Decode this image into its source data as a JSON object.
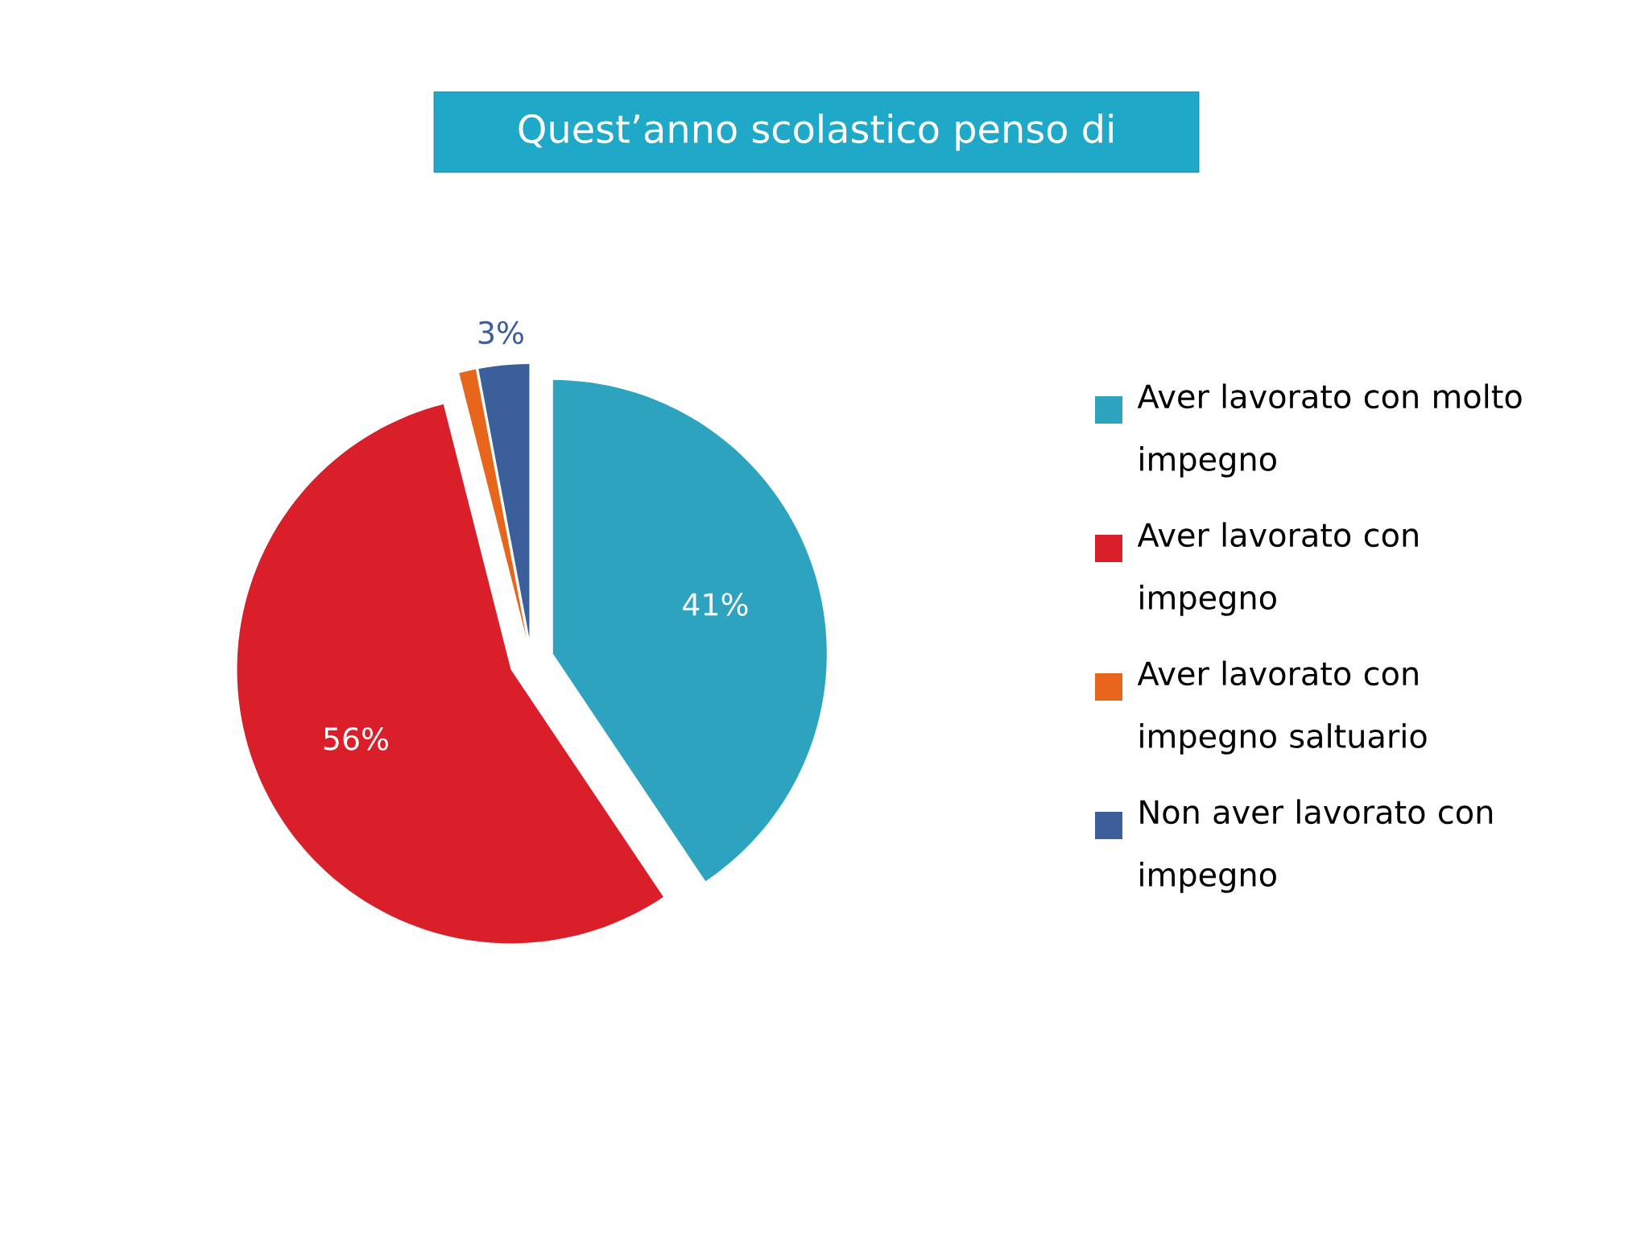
{
  "chart_data": {
    "type": "pie",
    "title": "Quest’anno scolastico penso di",
    "categories": [
      "Aver lavorato con molto impegno",
      "Aver lavorato con impegno",
      "Aver lavorato con impegno saltuario",
      "Non aver lavorato con impegno"
    ],
    "values": [
      41,
      56,
      1,
      3
    ],
    "colors": [
      "#2ea3c0",
      "#d81f2a",
      "#e8661c",
      "#3a5f9a"
    ],
    "value_labels": [
      "41%",
      "56%",
      null,
      "3%"
    ],
    "legend": "right"
  }
}
